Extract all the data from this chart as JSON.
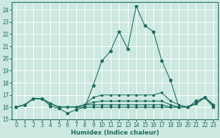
{
  "xlabel": "Humidex (Indice chaleur)",
  "xlim": [
    -0.5,
    23.5
  ],
  "ylim": [
    15.0,
    24.6
  ],
  "yticks": [
    15,
    16,
    17,
    18,
    19,
    20,
    21,
    22,
    23,
    24
  ],
  "xticks": [
    0,
    1,
    2,
    3,
    4,
    5,
    6,
    7,
    8,
    9,
    10,
    11,
    12,
    13,
    14,
    15,
    16,
    17,
    18,
    19,
    20,
    21,
    22,
    23
  ],
  "bg_color": "#cce8e0",
  "grid_color": "#ffffff",
  "line_color": "#1a6b5e",
  "lines": [
    [
      16.0,
      16.2,
      16.7,
      16.7,
      16.1,
      15.9,
      15.5,
      15.8,
      16.0,
      17.8,
      19.8,
      20.6,
      22.2,
      20.8,
      24.3,
      22.7,
      22.2,
      19.8,
      18.2,
      16.0,
      16.0,
      16.5,
      16.8,
      16.0
    ],
    [
      16.0,
      16.2,
      16.7,
      16.7,
      16.3,
      16.0,
      16.0,
      16.0,
      16.2,
      16.8,
      17.0,
      17.0,
      17.0,
      17.0,
      17.0,
      17.0,
      17.0,
      17.2,
      16.5,
      16.2,
      16.0,
      16.3,
      16.8,
      16.2
    ],
    [
      16.0,
      16.2,
      16.7,
      16.7,
      16.3,
      16.0,
      16.0,
      16.0,
      16.2,
      16.4,
      16.5,
      16.5,
      16.5,
      16.5,
      16.5,
      16.5,
      16.5,
      16.5,
      16.2,
      16.0,
      16.0,
      16.3,
      16.8,
      16.2
    ],
    [
      16.0,
      16.2,
      16.7,
      16.7,
      16.3,
      16.0,
      16.0,
      16.0,
      16.2,
      16.2,
      16.2,
      16.2,
      16.2,
      16.2,
      16.2,
      16.2,
      16.2,
      16.2,
      16.0,
      16.0,
      16.0,
      16.3,
      16.8,
      16.2
    ],
    [
      16.0,
      16.2,
      16.7,
      16.7,
      16.3,
      16.0,
      16.0,
      16.0,
      16.0,
      16.0,
      16.0,
      16.0,
      16.0,
      16.0,
      16.0,
      16.0,
      16.0,
      16.0,
      16.0,
      16.0,
      16.0,
      16.3,
      16.8,
      16.2
    ]
  ]
}
